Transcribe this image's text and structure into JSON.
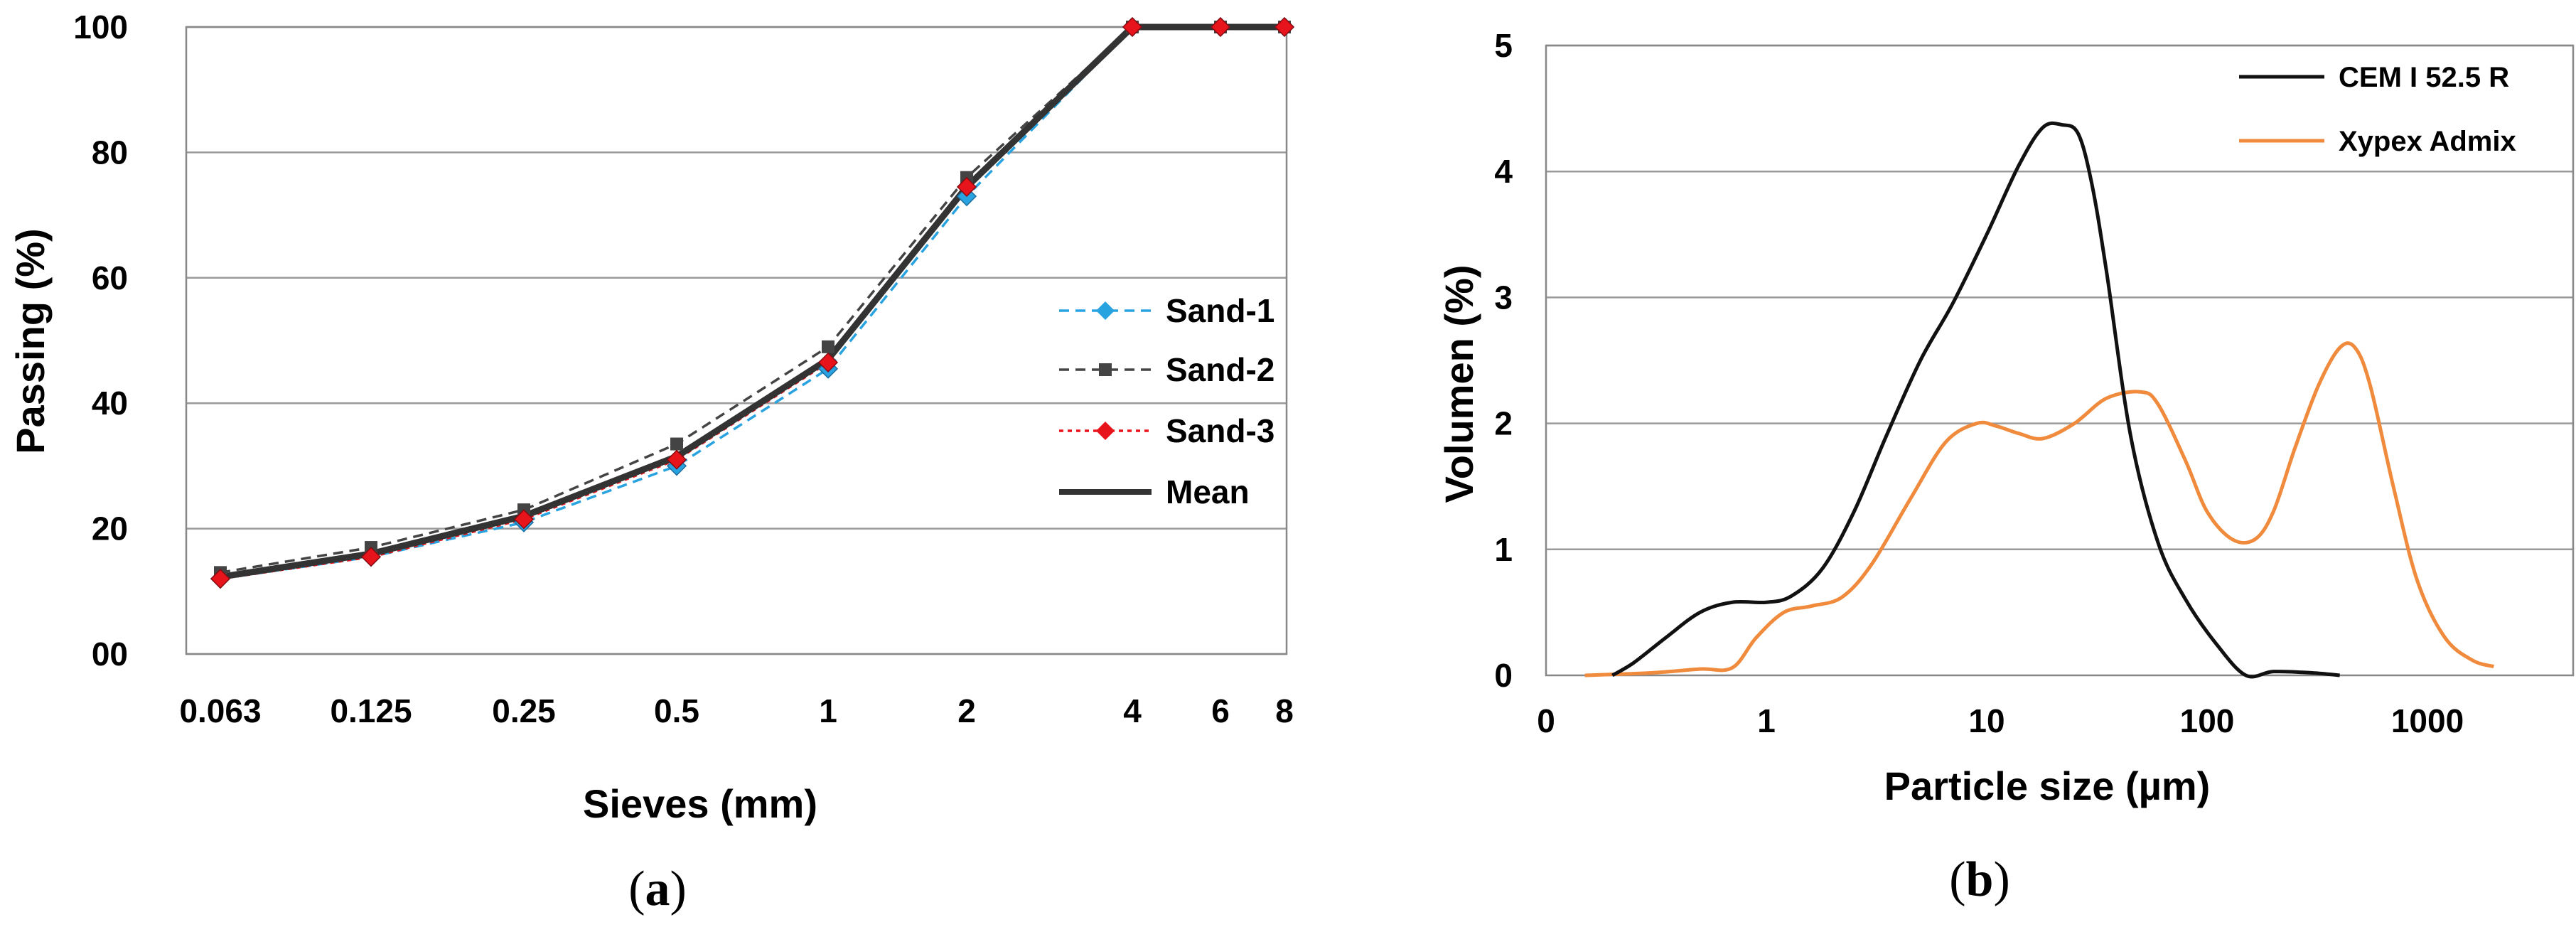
{
  "chart_data": [
    {
      "type": "line",
      "panel_label": "a",
      "xlabel": "Sieves (mm)",
      "ylabel": "Passing (%)",
      "categories": [
        "0.063",
        "0.125",
        "0.25",
        "0.5",
        "1",
        "2",
        "4",
        "6",
        "8"
      ],
      "ylim": [
        0,
        100
      ],
      "yticks": [
        0,
        20,
        40,
        60,
        80,
        100
      ],
      "grid": true,
      "legend_position": "right",
      "series": [
        {
          "name": "Sand-1",
          "style": "dashed",
          "marker": "diamond",
          "color": "#29a3e0",
          "values": [
            12.0,
            15.5,
            21.0,
            30.0,
            45.5,
            73.0,
            100,
            100,
            100
          ]
        },
        {
          "name": "Sand-2",
          "style": "dashed",
          "marker": "square",
          "color": "#444444",
          "values": [
            13.0,
            17.0,
            23.0,
            33.5,
            49.0,
            76.0,
            100,
            100,
            100
          ]
        },
        {
          "name": "Sand-3",
          "style": "dotted",
          "marker": "diamond",
          "color": "#e8141c",
          "values": [
            12.0,
            15.5,
            21.5,
            31.0,
            46.5,
            74.5,
            100,
            100,
            100
          ]
        },
        {
          "name": "Mean",
          "style": "solid",
          "marker": "none",
          "color": "#333333",
          "values": [
            12.3,
            16.0,
            22.0,
            31.5,
            47.0,
            74.5,
            100,
            100,
            100
          ]
        }
      ]
    },
    {
      "type": "line",
      "panel_label": "b",
      "xlabel": "Particle size (µm)",
      "ylabel": "Volumen (%)",
      "xscale": "log",
      "xticks": [
        "0",
        "1",
        "10",
        "100",
        "1000"
      ],
      "ylim": [
        0,
        5
      ],
      "yticks": [
        0,
        1,
        2,
        3,
        4,
        5
      ],
      "grid": true,
      "legend_position": "top-right",
      "series": [
        {
          "name": "CEM I 52.5 R",
          "color": "#111111",
          "x": [
            0.2,
            0.25,
            0.35,
            0.5,
            0.7,
            1.0,
            1.3,
            1.8,
            2.5,
            3.5,
            5,
            7,
            10,
            14,
            18,
            22,
            26,
            30,
            35,
            45,
            60,
            80,
            110,
            150,
            200,
            300,
            400
          ],
          "y": [
            0.0,
            0.1,
            0.3,
            0.5,
            0.58,
            0.58,
            0.63,
            0.85,
            1.3,
            1.9,
            2.5,
            2.95,
            3.5,
            4.05,
            4.35,
            4.37,
            4.3,
            3.9,
            3.2,
            1.9,
            1.05,
            0.6,
            0.25,
            0.0,
            0.03,
            0.02,
            0.0
          ]
        },
        {
          "name": "Xypex Admix",
          "color": "#f08a3c",
          "x": [
            0.15,
            0.3,
            0.5,
            0.7,
            0.9,
            1.2,
            1.6,
            2.2,
            3,
            4.5,
            6.5,
            9,
            11,
            14,
            18,
            25,
            35,
            50,
            60,
            80,
            100,
            130,
            165,
            200,
            250,
            320,
            400,
            470,
            550,
            700,
            900,
            1200,
            1600,
            2000
          ],
          "y": [
            0.0,
            0.02,
            0.05,
            0.06,
            0.3,
            0.5,
            0.55,
            0.62,
            0.88,
            1.4,
            1.85,
            2.0,
            1.98,
            1.92,
            1.88,
            2.0,
            2.2,
            2.25,
            2.15,
            1.7,
            1.3,
            1.08,
            1.08,
            1.3,
            1.8,
            2.3,
            2.6,
            2.6,
            2.3,
            1.5,
            0.75,
            0.3,
            0.12,
            0.07
          ]
        }
      ]
    }
  ]
}
